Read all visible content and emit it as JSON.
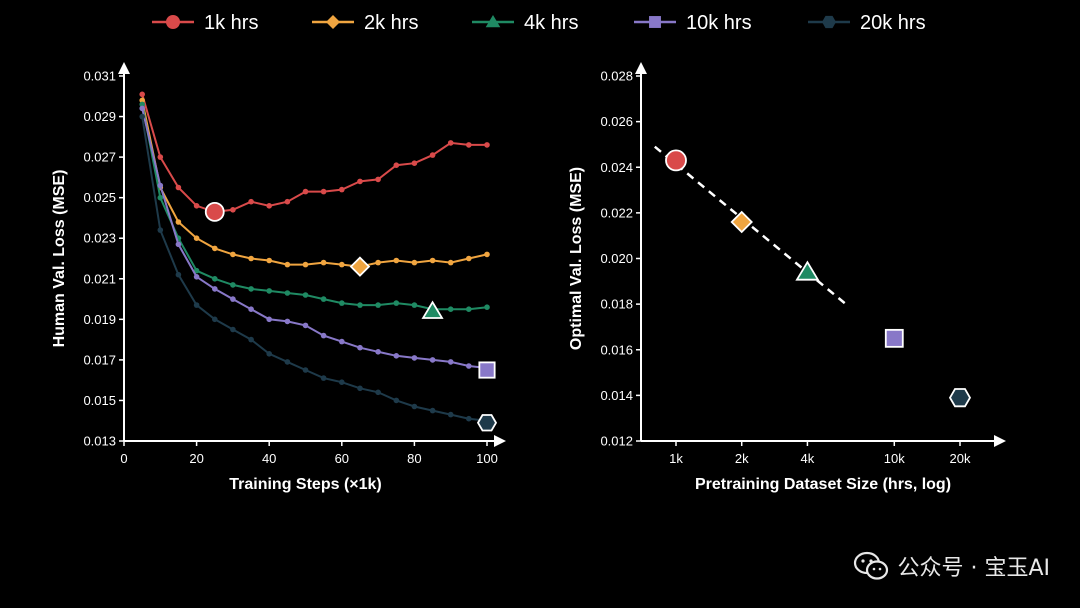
{
  "legend": [
    {
      "label": "1k hrs",
      "color": "#d94a4a",
      "marker": "circle"
    },
    {
      "label": "2k hrs",
      "color": "#f0a540",
      "marker": "diamond"
    },
    {
      "label": "4k hrs",
      "color": "#1f8a63",
      "marker": "triangle"
    },
    {
      "label": "10k hrs",
      "color": "#8878c8",
      "marker": "square"
    },
    {
      "label": "20k hrs",
      "color": "#1e3a4a",
      "marker": "hexagon"
    }
  ],
  "chart_data": [
    {
      "type": "line",
      "xlabel": "Training Steps (×1k)",
      "ylabel": "Human Val. Loss (MSE)",
      "xlim": [
        0,
        100
      ],
      "ylim": [
        0.013,
        0.031
      ],
      "xticks": [
        0,
        20,
        40,
        60,
        80,
        100
      ],
      "yticks": [
        0.013,
        0.015,
        0.017,
        0.019,
        0.021,
        0.023,
        0.025,
        0.027,
        0.029,
        0.031
      ],
      "x": [
        5,
        10,
        15,
        20,
        25,
        30,
        35,
        40,
        45,
        50,
        55,
        60,
        65,
        70,
        75,
        80,
        85,
        90,
        95,
        100
      ],
      "series": [
        {
          "name": "1k hrs",
          "values": [
            0.0301,
            0.027,
            0.0255,
            0.0246,
            0.0243,
            0.0244,
            0.0248,
            0.0246,
            0.0248,
            0.0253,
            0.0253,
            0.0254,
            0.0258,
            0.0259,
            0.0266,
            0.0267,
            0.0271,
            0.0277,
            0.0276,
            0.0276
          ],
          "optimum": {
            "x": 25,
            "y": 0.0243
          }
        },
        {
          "name": "2k hrs",
          "values": [
            0.0298,
            0.0255,
            0.0238,
            0.023,
            0.0225,
            0.0222,
            0.022,
            0.0219,
            0.0217,
            0.0217,
            0.0218,
            0.0217,
            0.0216,
            0.0218,
            0.0219,
            0.0218,
            0.0219,
            0.0218,
            0.022,
            0.0222
          ],
          "optimum": {
            "x": 65,
            "y": 0.0216
          }
        },
        {
          "name": "4k hrs",
          "values": [
            0.0296,
            0.025,
            0.023,
            0.0214,
            0.021,
            0.0207,
            0.0205,
            0.0204,
            0.0203,
            0.0202,
            0.02,
            0.0198,
            0.0197,
            0.0197,
            0.0198,
            0.0197,
            0.0195,
            0.0195,
            0.0195,
            0.0196
          ],
          "optimum": {
            "x": 85,
            "y": 0.0194
          }
        },
        {
          "name": "10k hrs",
          "values": [
            0.0294,
            0.0256,
            0.0227,
            0.0211,
            0.0205,
            0.02,
            0.0195,
            0.019,
            0.0189,
            0.0187,
            0.0182,
            0.0179,
            0.0176,
            0.0174,
            0.0172,
            0.0171,
            0.017,
            0.0169,
            0.0167,
            0.0166
          ],
          "optimum": {
            "x": 100,
            "y": 0.0165
          }
        },
        {
          "name": "20k hrs",
          "values": [
            0.029,
            0.0234,
            0.0212,
            0.0197,
            0.019,
            0.0185,
            0.018,
            0.0173,
            0.0169,
            0.0165,
            0.0161,
            0.0159,
            0.0156,
            0.0154,
            0.015,
            0.0147,
            0.0145,
            0.0143,
            0.0141,
            0.014
          ],
          "optimum": {
            "x": 100,
            "y": 0.0139
          }
        }
      ]
    },
    {
      "type": "scatter",
      "xlabel": "Pretraining Dataset Size (hrs, log)",
      "ylabel": "Optimal Val. Loss (MSE)",
      "xscale": "log",
      "ylim": [
        0.012,
        0.028
      ],
      "xticks": [
        "1k",
        "2k",
        "4k",
        "10k",
        "20k"
      ],
      "xvalues": [
        1000,
        2000,
        4000,
        10000,
        20000
      ],
      "yticks": [
        0.012,
        0.014,
        0.016,
        0.018,
        0.02,
        0.022,
        0.024,
        0.026,
        0.028
      ],
      "points": [
        {
          "name": "1k hrs",
          "x": 1000,
          "y": 0.0243
        },
        {
          "name": "2k hrs",
          "x": 2000,
          "y": 0.0216
        },
        {
          "name": "4k hrs",
          "x": 4000,
          "y": 0.0194
        },
        {
          "name": "10k hrs",
          "x": 10000,
          "y": 0.0165
        },
        {
          "name": "20k hrs",
          "x": 20000,
          "y": 0.0139
        }
      ],
      "fit_line": {
        "x": [
          800,
          6000
        ],
        "y": [
          0.0249,
          0.018
        ],
        "style": "dashed"
      }
    }
  ],
  "watermark": {
    "text": "公众号 · 宝玉AI",
    "icon": "wechat-icon"
  }
}
